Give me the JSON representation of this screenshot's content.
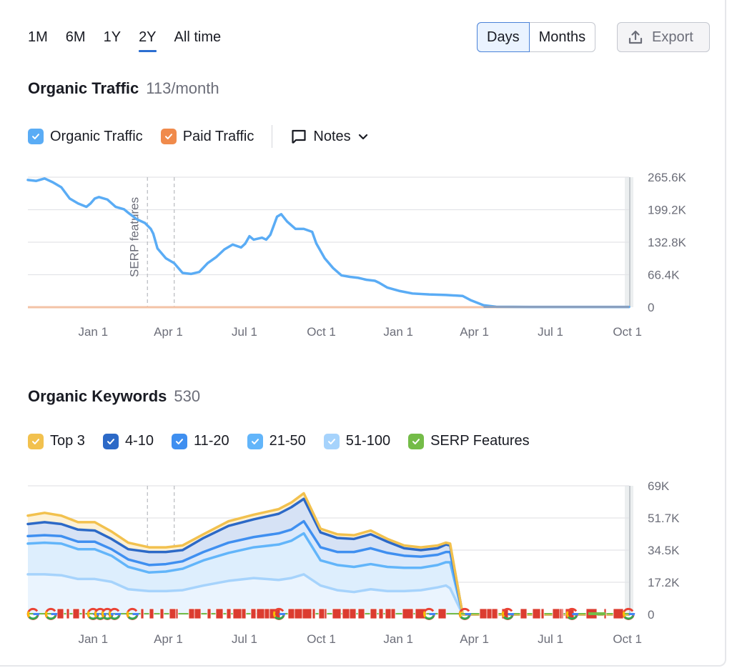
{
  "period_tabs": [
    {
      "label": "1M",
      "active": false
    },
    {
      "label": "6M",
      "active": false
    },
    {
      "label": "1Y",
      "active": false
    },
    {
      "label": "2Y",
      "active": true
    },
    {
      "label": "All time",
      "active": false
    }
  ],
  "granularity": {
    "options": [
      "Days",
      "Months"
    ],
    "selected": "Days"
  },
  "export": {
    "label": "Export",
    "icon": "upload-icon"
  },
  "traffic_section": {
    "title": "Organic Traffic",
    "subtitle": "113/month",
    "legend": [
      {
        "label": "Organic Traffic",
        "color": "#5aacf5",
        "checked": true
      },
      {
        "label": "Paid Traffic",
        "color": "#f08a4b",
        "checked": true
      }
    ],
    "notes": {
      "label": "Notes",
      "icon": "comment-icon"
    }
  },
  "keywords_section": {
    "title": "Organic Keywords",
    "subtitle": "530",
    "legend": [
      {
        "label": "Top 3",
        "color": "#f2c14e",
        "checked": true
      },
      {
        "label": "4-10",
        "color": "#2c69c7",
        "checked": true
      },
      {
        "label": "11-20",
        "color": "#3f8ff0",
        "checked": true
      },
      {
        "label": "21-50",
        "color": "#62b5fa",
        "checked": true
      },
      {
        "label": "51-100",
        "color": "#a6d3fc",
        "checked": true
      },
      {
        "label": "SERP Features",
        "color": "#74bc48",
        "checked": true
      }
    ]
  },
  "chart_data": [
    {
      "type": "line",
      "title": "Organic Traffic",
      "xlabel": "",
      "ylabel": "",
      "x_unit": "days since start (start ≈ Oct 15, 2022)",
      "x_ticks": [
        {
          "label": "Jan 1",
          "x": 78
        },
        {
          "label": "Apr 1",
          "x": 168
        },
        {
          "label": "Jul 1",
          "x": 259
        },
        {
          "label": "Oct 1",
          "x": 351
        },
        {
          "label": "Jan 1",
          "x": 443
        },
        {
          "label": "Apr 1",
          "x": 534
        },
        {
          "label": "Jul 1",
          "x": 625
        },
        {
          "label": "Oct 1",
          "x": 717
        }
      ],
      "x_range": [
        0,
        719
      ],
      "y_ticks": [
        "0",
        "66.4K",
        "132.8K",
        "199.2K",
        "265.6K"
      ],
      "ylim": [
        0,
        265600
      ],
      "annotations": [
        {
          "label": "SERP features",
          "x": 143
        },
        {
          "label": "",
          "x": 175
        }
      ],
      "series": [
        {
          "name": "Organic Traffic",
          "color": "#5aacf5",
          "points": [
            [
              0,
              260000
            ],
            [
              10,
              258000
            ],
            [
              20,
              263000
            ],
            [
              30,
              255000
            ],
            [
              40,
              245000
            ],
            [
              50,
              222000
            ],
            [
              60,
              212000
            ],
            [
              70,
              205000
            ],
            [
              75,
              212000
            ],
            [
              80,
              222000
            ],
            [
              85,
              225000
            ],
            [
              95,
              220000
            ],
            [
              105,
              205000
            ],
            [
              115,
              200000
            ],
            [
              120,
              193000
            ],
            [
              130,
              180000
            ],
            [
              140,
              172000
            ],
            [
              147,
              160000
            ],
            [
              150,
              150000
            ],
            [
              155,
              120000
            ],
            [
              165,
              100000
            ],
            [
              175,
              90000
            ],
            [
              185,
              70000
            ],
            [
              195,
              68000
            ],
            [
              205,
              72000
            ],
            [
              215,
              90000
            ],
            [
              225,
              102000
            ],
            [
              235,
              118000
            ],
            [
              245,
              128000
            ],
            [
              255,
              122000
            ],
            [
              260,
              130000
            ],
            [
              265,
              145000
            ],
            [
              270,
              138000
            ],
            [
              280,
              142000
            ],
            [
              285,
              138000
            ],
            [
              290,
              148000
            ],
            [
              298,
              185000
            ],
            [
              303,
              190000
            ],
            [
              310,
              175000
            ],
            [
              320,
              160000
            ],
            [
              330,
              160000
            ],
            [
              340,
              154000
            ],
            [
              345,
              130000
            ],
            [
              355,
              100000
            ],
            [
              365,
              80000
            ],
            [
              375,
              65000
            ],
            [
              385,
              62000
            ],
            [
              395,
              60000
            ],
            [
              405,
              56000
            ],
            [
              415,
              54000
            ],
            [
              420,
              50000
            ],
            [
              430,
              40000
            ],
            [
              445,
              33000
            ],
            [
              460,
              28000
            ],
            [
              480,
              26000
            ],
            [
              500,
              25000
            ],
            [
              520,
              23000
            ],
            [
              530,
              14000
            ],
            [
              545,
              4000
            ],
            [
              560,
              1000
            ],
            [
              600,
              600
            ],
            [
              700,
              500
            ],
            [
              719,
              500
            ]
          ]
        },
        {
          "name": "Paid Traffic",
          "color": "#f08a4b",
          "points": [
            [
              0,
              0
            ],
            [
              719,
              0
            ]
          ]
        }
      ],
      "grid": true,
      "legend": "top-left"
    },
    {
      "type": "area",
      "title": "Organic Keywords",
      "xlabel": "",
      "ylabel": "",
      "x_unit": "days since start (start ≈ Oct 15, 2022)",
      "x_ticks": [
        {
          "label": "Jan 1",
          "x": 78
        },
        {
          "label": "Apr 1",
          "x": 168
        },
        {
          "label": "Jul 1",
          "x": 259
        },
        {
          "label": "Oct 1",
          "x": 351
        },
        {
          "label": "Jan 1",
          "x": 443
        },
        {
          "label": "Apr 1",
          "x": 534
        },
        {
          "label": "Jul 1",
          "x": 625
        },
        {
          "label": "Oct 1",
          "x": 717
        }
      ],
      "x_range": [
        0,
        719
      ],
      "y_ticks": [
        "0",
        "17.2K",
        "34.5K",
        "51.7K",
        "69K"
      ],
      "ylim": [
        0,
        69000
      ],
      "stacked": true,
      "x": [
        0,
        20,
        40,
        60,
        80,
        100,
        120,
        145,
        165,
        185,
        210,
        240,
        270,
        300,
        315,
        330,
        350,
        370,
        390,
        410,
        430,
        450,
        470,
        490,
        500,
        505,
        520,
        719
      ],
      "series": [
        {
          "name": "Top 3 (cumulative top)",
          "color": "#f2c14e",
          "values": [
            53000,
            54500,
            53000,
            49500,
            49500,
            44500,
            38500,
            36000,
            36000,
            37000,
            43000,
            50000,
            53500,
            56500,
            60000,
            65000,
            46000,
            43000,
            42500,
            45000,
            40500,
            37000,
            36000,
            37000,
            38500,
            38000,
            0,
            0
          ]
        },
        {
          "name": "4-10 (cumulative)",
          "color": "#2c69c7",
          "values": [
            48500,
            49500,
            48500,
            45500,
            45000,
            40500,
            35000,
            33500,
            33500,
            34500,
            41000,
            47500,
            51000,
            54000,
            57500,
            62000,
            44000,
            41000,
            40500,
            43000,
            39000,
            35500,
            34500,
            35500,
            37500,
            37000,
            0,
            0
          ]
        },
        {
          "name": "11-20 (cumulative)",
          "color": "#3f8ff0",
          "values": [
            42000,
            42500,
            42000,
            39000,
            39000,
            35000,
            29500,
            26500,
            27000,
            28500,
            33500,
            38500,
            41500,
            43500,
            45500,
            50000,
            36000,
            33500,
            33500,
            35500,
            33000,
            31500,
            31000,
            32000,
            33500,
            33500,
            0,
            0
          ]
        },
        {
          "name": "21-50 (cumulative)",
          "color": "#62b5fa",
          "values": [
            38000,
            38500,
            38000,
            35000,
            35000,
            31500,
            25500,
            22500,
            23000,
            24500,
            29000,
            33000,
            36000,
            37500,
            39500,
            43500,
            29000,
            26500,
            25500,
            27000,
            25500,
            25000,
            25000,
            26500,
            28000,
            28000,
            0,
            0
          ]
        },
        {
          "name": "51-100 (cumulative)",
          "color": "#a6d3fc",
          "values": [
            21500,
            21500,
            21000,
            19000,
            19000,
            17500,
            13500,
            12500,
            12500,
            13000,
            15500,
            18000,
            19500,
            18500,
            19500,
            21500,
            15500,
            13000,
            12000,
            13500,
            12500,
            12500,
            13000,
            14500,
            15500,
            14000,
            0,
            0
          ]
        }
      ],
      "serp_features_strip": "row of Google 'G' icons, red flag markers and green segments along the x-axis",
      "grid": true,
      "legend": "top-left"
    }
  ]
}
